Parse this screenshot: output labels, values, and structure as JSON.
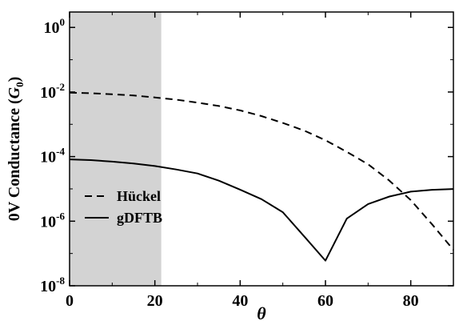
{
  "chart_data": {
    "type": "line",
    "xlabel": "θ",
    "ylabel_prefix": "0V Conductance (",
    "ylabel_symbol": "G",
    "ylabel_sub": "0",
    "ylabel_suffix": ")",
    "xlim": [
      0,
      90
    ],
    "ylim": [
      1e-08,
      3
    ],
    "yscale": "log",
    "grid": false,
    "legend_position": "middle-left",
    "x_ticks": [
      "0",
      "20",
      "40",
      "60",
      "80"
    ],
    "y_ticks": [
      {
        "base": "10",
        "exp": "0"
      },
      {
        "base": "10",
        "exp": "-2"
      },
      {
        "base": "10",
        "exp": "-4"
      },
      {
        "base": "10",
        "exp": "-6"
      },
      {
        "base": "10",
        "exp": "-8"
      }
    ],
    "shaded_region": {
      "x_start": 0,
      "x_end": 21.5,
      "color": "#d3d3d3"
    },
    "series": [
      {
        "name": "Hückel",
        "style": "dashed",
        "color": "#000000",
        "x": [
          0,
          5,
          10,
          15,
          20,
          25,
          30,
          35,
          40,
          45,
          50,
          55,
          60,
          65,
          70,
          75,
          80,
          85,
          90
        ],
        "y": [
          0.0095,
          0.0092,
          0.0085,
          0.0078,
          0.0068,
          0.0058,
          0.0047,
          0.0037,
          0.0027,
          0.0018,
          0.0011,
          0.00064,
          0.00032,
          0.00014,
          5.8e-05,
          1.8e-05,
          4.5e-06,
          8e-07,
          1.3e-07
        ]
      },
      {
        "name": "gDFTB",
        "style": "solid",
        "color": "#000000",
        "x": [
          0,
          5,
          10,
          15,
          20,
          25,
          30,
          35,
          40,
          45,
          50,
          55,
          60,
          65,
          70,
          75,
          80,
          85,
          90
        ],
        "y": [
          8.2e-05,
          7.8e-05,
          7e-05,
          6.1e-05,
          5.1e-05,
          4e-05,
          3e-05,
          1.8e-05,
          9.5e-06,
          4.8e-06,
          1.9e-06,
          3.4e-07,
          6e-08,
          1.2e-06,
          3.4e-06,
          5.8e-06,
          8.2e-06,
          9.4e-06,
          9.9e-06
        ]
      }
    ]
  }
}
